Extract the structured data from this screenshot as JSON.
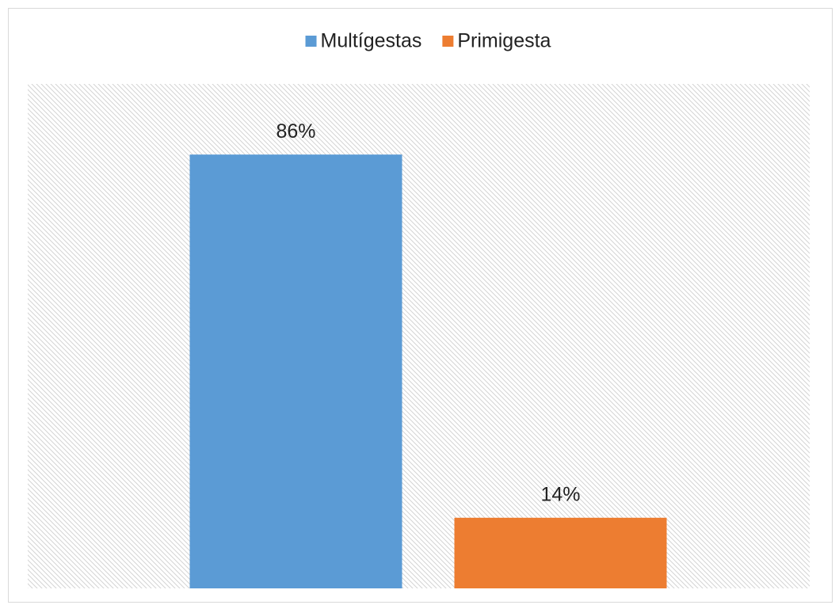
{
  "chart_data": {
    "type": "bar",
    "categories": [
      null
    ],
    "series": [
      {
        "name": "Multígestas",
        "color": "#5b9bd5",
        "values": [
          86
        ],
        "value_labels": [
          "86%"
        ]
      },
      {
        "name": "Primigesta",
        "color": "#ed7d31",
        "values": [
          14
        ],
        "value_labels": [
          "14%"
        ]
      }
    ],
    "ylim": [
      0,
      100
    ],
    "legend": "top"
  }
}
